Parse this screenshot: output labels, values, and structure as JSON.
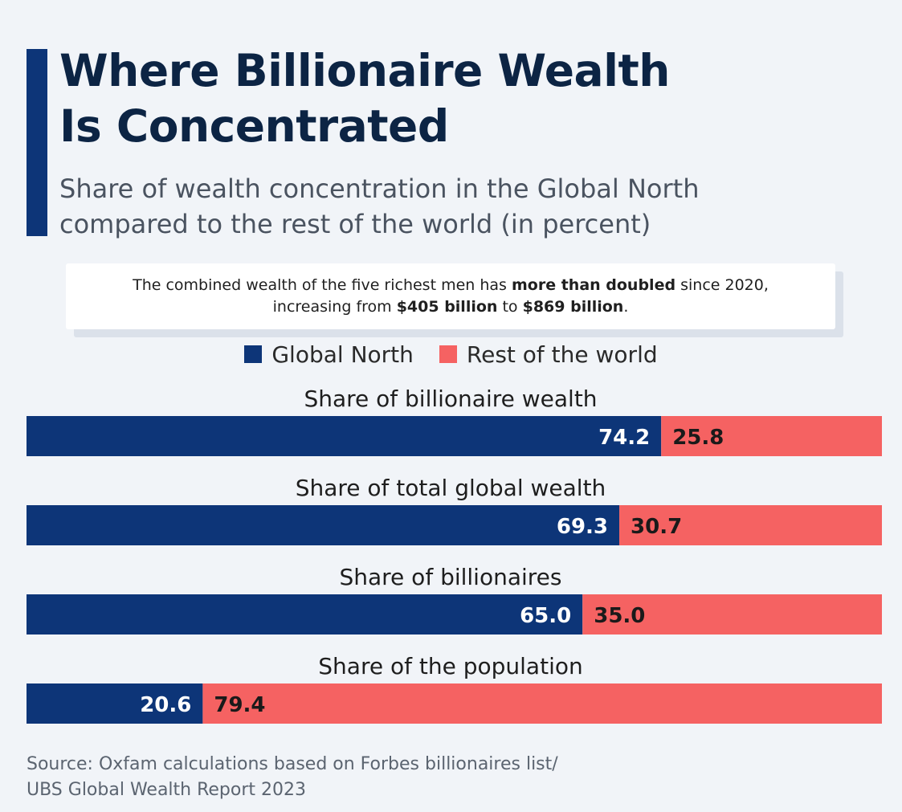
{
  "title_line1": "Where Billionaire Wealth",
  "title_line2": "Is Concentrated",
  "subtitle_line1": "Share of wealth concentration in the Global North",
  "subtitle_line2": "compared to the rest of the world (in percent)",
  "note": {
    "line1_a": "The combined wealth of the five richest men has ",
    "line1_b": "more than doubled",
    "line1_c": " since 2020,",
    "line2_a": "increasing from ",
    "line2_b": "$405 billion",
    "line2_c": " to ",
    "line2_d": "$869 billion",
    "line2_e": "."
  },
  "source_line1": "Source: Oxfam calculations based on Forbes billionaires list/",
  "source_line2": "UBS Global Wealth Report 2023",
  "colors": {
    "global_north": "#0d3578",
    "rest_of_world": "#f56262"
  },
  "chart_data": {
    "type": "bar",
    "orientation": "horizontal-stacked-100",
    "categories": [
      "Share of billionaire wealth",
      "Share of total global wealth",
      "Share of billionaires",
      "Share of the population"
    ],
    "series": [
      {
        "name": "Global North",
        "values": [
          74.2,
          69.3,
          65.0,
          20.6
        ],
        "labels": [
          "74.2",
          "69.3",
          "65.0",
          "20.6"
        ]
      },
      {
        "name": "Rest of the world",
        "values": [
          25.8,
          30.7,
          35.0,
          79.4
        ],
        "labels": [
          "25.8",
          "30.7",
          "35.0",
          "79.4"
        ]
      }
    ],
    "xlim": [
      0,
      100
    ],
    "legend": "top-center",
    "grid": false
  }
}
